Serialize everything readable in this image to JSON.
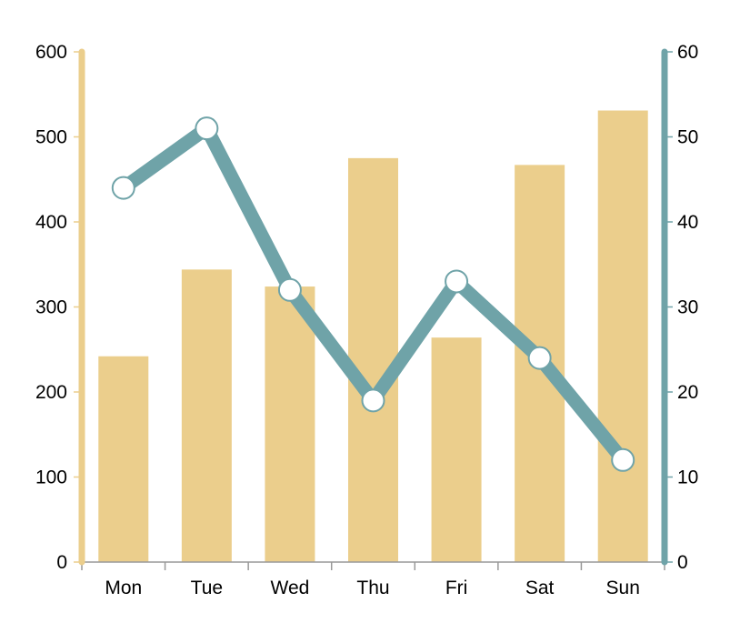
{
  "chart_data": {
    "type": "bar",
    "categories": [
      "Mon",
      "Tue",
      "Wed",
      "Thu",
      "Fri",
      "Sat",
      "Sun"
    ],
    "series": [
      {
        "type": "bar",
        "axis": "left",
        "color": "#EBCE8C",
        "values": [
          242,
          344,
          324,
          475,
          264,
          467,
          531
        ]
      },
      {
        "type": "line",
        "axis": "right",
        "color": "#6FA3A8",
        "values": [
          44,
          51,
          32,
          19,
          33,
          24,
          12
        ]
      }
    ],
    "left_axis": {
      "range": [
        0,
        600
      ],
      "ticks": [
        0,
        100,
        200,
        300,
        400,
        500,
        600
      ],
      "color": "#EBCE8C"
    },
    "right_axis": {
      "range": [
        0,
        60
      ],
      "ticks": [
        0,
        10,
        20,
        30,
        40,
        50,
        60
      ],
      "color": "#6FA3A8"
    },
    "title": "",
    "xlabel": "",
    "grid": false,
    "legend": "none"
  }
}
